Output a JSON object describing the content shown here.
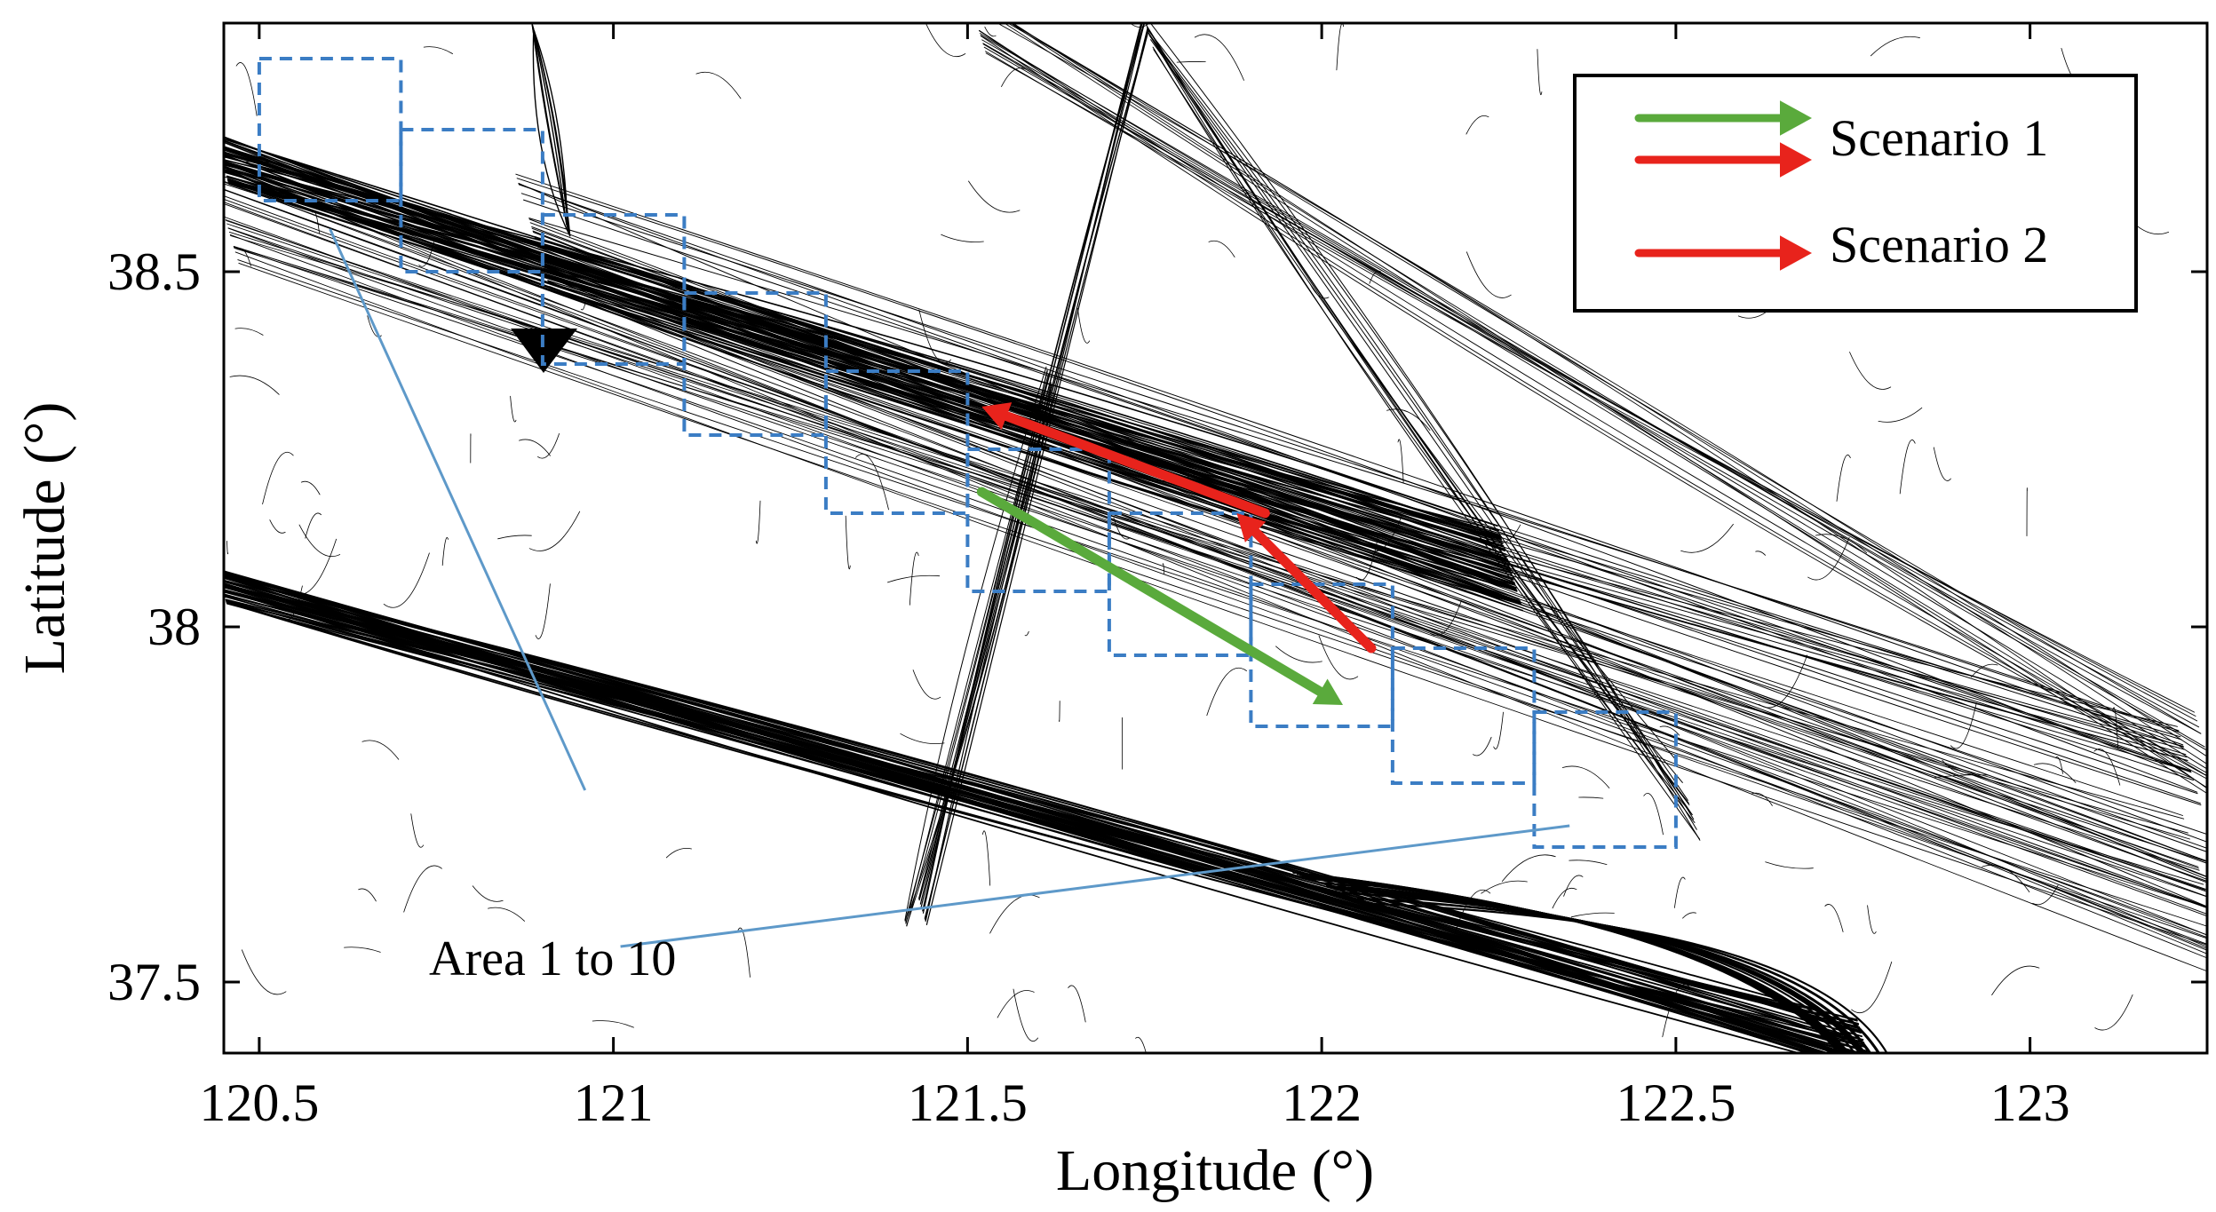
{
  "chart_data": {
    "type": "map",
    "title": "",
    "xlabel": "Longitude (°)",
    "ylabel": "Latitude (°)",
    "xlim": [
      120.45,
      123.25
    ],
    "ylim": [
      37.4,
      38.85
    ],
    "xticks": [
      120.5,
      121,
      121.5,
      122,
      122.5,
      123
    ],
    "xtick_labels": [
      "120.5",
      "121",
      "121.5",
      "122",
      "122.5",
      "123"
    ],
    "yticks": [
      37.5,
      38,
      38.5
    ],
    "ytick_labels": [
      "37.5",
      "38",
      "38.5"
    ],
    "grid": false,
    "legend": {
      "position": "top-right",
      "entries": [
        {
          "label": "Scenario 1",
          "colors": [
            "#5aaa3c",
            "#e8231c"
          ]
        },
        {
          "label": "Scenario 2",
          "colors": [
            "#e8231c"
          ]
        }
      ]
    },
    "series": [
      {
        "color": "#5aaa3c",
        "points": [
          [
            121.52,
            38.19
          ],
          [
            122.03,
            37.89
          ]
        ]
      },
      {
        "color": "#e8231c",
        "points": [
          [
            121.92,
            38.16
          ],
          [
            121.52,
            38.31
          ]
        ]
      },
      {
        "color": "#e8231c",
        "points": [
          [
            122.07,
            37.97
          ],
          [
            121.88,
            38.16
          ]
        ]
      }
    ],
    "areas": [
      {
        "lon": [
          120.5,
          120.7
        ],
        "lat": [
          38.6,
          38.8
        ]
      },
      {
        "lon": [
          120.7,
          120.9
        ],
        "lat": [
          38.5,
          38.7
        ]
      },
      {
        "lon": [
          120.9,
          121.1
        ],
        "lat": [
          38.37,
          38.58
        ]
      },
      {
        "lon": [
          121.1,
          121.3
        ],
        "lat": [
          38.27,
          38.47
        ]
      },
      {
        "lon": [
          121.3,
          121.5
        ],
        "lat": [
          38.16,
          38.36
        ]
      },
      {
        "lon": [
          121.5,
          121.7
        ],
        "lat": [
          38.05,
          38.25
        ]
      },
      {
        "lon": [
          121.7,
          121.9
        ],
        "lat": [
          37.96,
          38.16
        ]
      },
      {
        "lon": [
          121.9,
          122.1
        ],
        "lat": [
          37.86,
          38.06
        ]
      },
      {
        "lon": [
          122.1,
          122.3
        ],
        "lat": [
          37.78,
          37.97
        ]
      },
      {
        "lon": [
          122.3,
          122.5
        ],
        "lat": [
          37.69,
          37.88
        ]
      }
    ],
    "annotation": {
      "text": "Area 1 to 10",
      "position": "bottom-left",
      "leaders": [
        [
          120.6,
          38.56
        ],
        [
          122.35,
          37.72
        ]
      ]
    },
    "colors": {
      "track": "#000000",
      "area": "#3b7dc4",
      "leader": "#5e99c9"
    }
  }
}
